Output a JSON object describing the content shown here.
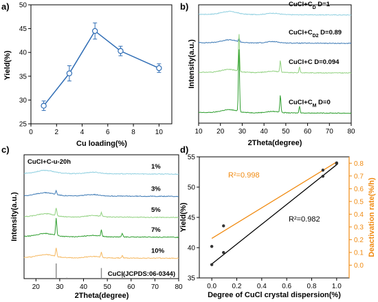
{
  "panel_labels": {
    "a": "a)",
    "b": "b)",
    "c": "c)",
    "d": "d)"
  },
  "colors": {
    "blue": "#2f6db5",
    "orange": "#f08a10",
    "black": "#000000",
    "c1": "#8ecfe0",
    "c2": "#3a78b4",
    "c3": "#8fd07e",
    "c4": "#2f9e2f",
    "c5": "#f5b860",
    "ref": "#888888"
  },
  "chart_data": [
    {
      "type": "line",
      "panel": "a",
      "xlabel": "Cu loading(%)",
      "ylabel": "Yield(%)",
      "xlim": [
        0,
        11
      ],
      "ylim": [
        25,
        50
      ],
      "xticks": [
        "0",
        "2",
        "4",
        "6",
        "8",
        "10"
      ],
      "yticks": [
        "25",
        "30",
        "35",
        "40",
        "45",
        "50"
      ],
      "x": [
        1,
        3,
        5,
        7,
        10
      ],
      "y": [
        28.8,
        35.6,
        44.5,
        40.3,
        36.7
      ],
      "yerr": [
        1.0,
        1.6,
        1.7,
        1.0,
        0.9
      ]
    },
    {
      "type": "line",
      "panel": "b",
      "xlabel": "2Theta(degree)",
      "ylabel": "Intensity(a.u.)",
      "xlim": [
        10,
        80
      ],
      "xticks": [
        "10",
        "20",
        "30",
        "40",
        "50",
        "60",
        "70",
        "80"
      ],
      "series": [
        {
          "label_main": "CuCl+C",
          "label_sub": "D",
          "label_d": "D=1",
          "color": "#8ecfe0",
          "baseline": 0.92,
          "peaks": []
        },
        {
          "label_main": "CuCl+C",
          "label_sub": "D2",
          "label_d": "D=0.89",
          "color": "#3a78b4",
          "baseline": 0.68,
          "peaks": [
            [
              28.5,
              0.03
            ]
          ]
        },
        {
          "label_main": "CuCl+C",
          "label_sub": "",
          "label_d": "D=0.094",
          "color": "#8fd07e",
          "baseline": 0.43,
          "peaks": [
            [
              28.5,
              0.33
            ],
            [
              47.5,
              0.1
            ],
            [
              56.3,
              0.05
            ]
          ]
        },
        {
          "label_main": "CuCl+C",
          "label_sub": "M",
          "label_d": "D=0",
          "color": "#2f9e2f",
          "baseline": 0.09,
          "peaks": [
            [
              28.5,
              0.55
            ],
            [
              47.5,
              0.15
            ],
            [
              56.3,
              0.06
            ]
          ]
        }
      ]
    },
    {
      "type": "line",
      "panel": "c",
      "title": "CuCl+C-u-20h",
      "xlabel": "2Theta(degree)",
      "ylabel": "Intensity(a.u.)",
      "xlim": [
        15,
        80
      ],
      "xticks": [
        "20",
        "30",
        "40",
        "50",
        "60",
        "70",
        "80"
      ],
      "series": [
        {
          "label": "1%",
          "color": "#8ecfe0",
          "baseline": 0.85,
          "peaks": []
        },
        {
          "label": "3%",
          "color": "#3a78b4",
          "baseline": 0.67,
          "peaks": [
            [
              28.5,
              0.03
            ]
          ]
        },
        {
          "label": "5%",
          "color": "#8fd07e",
          "baseline": 0.5,
          "peaks": [
            [
              28.5,
              0.06
            ],
            [
              47.5,
              0.03
            ]
          ]
        },
        {
          "label": "7%",
          "color": "#2f9e2f",
          "baseline": 0.34,
          "peaks": [
            [
              28.5,
              0.14
            ],
            [
              47.5,
              0.05
            ],
            [
              56.3,
              0.03
            ]
          ]
        },
        {
          "label": "10%",
          "color": "#f5b860",
          "baseline": 0.17,
          "peaks": [
            [
              28.5,
              0.07
            ],
            [
              47.5,
              0.04
            ],
            [
              56.3,
              0.02
            ]
          ]
        }
      ],
      "reference": {
        "label": "CuCl(JCPDS:06-0344)",
        "lines": [
          [
            28.5,
            1.0
          ],
          [
            33.0,
            0.06
          ],
          [
            47.5,
            0.7
          ],
          [
            56.3,
            0.35
          ],
          [
            69.3,
            0.08
          ],
          [
            76.6,
            0.12
          ]
        ]
      }
    },
    {
      "type": "scatter",
      "panel": "d",
      "xlabel": "Degree of CuCl crystal dispersion(%)",
      "ylabel": "Yield(%)",
      "y2label": "Deactivation rate(%/h)",
      "xlim": [
        -0.1,
        1.1
      ],
      "ylim": [
        35,
        55
      ],
      "y2lim": [
        -0.1,
        0.85
      ],
      "xticks": [
        "0.0",
        "0.2",
        "0.4",
        "0.6",
        "0.8",
        "1.0"
      ],
      "yticks": [
        "35",
        "40",
        "45",
        "50",
        "55"
      ],
      "y2ticks": [
        "0.0",
        "0.1",
        "0.2",
        "0.3",
        "0.4",
        "0.5",
        "0.6",
        "0.7",
        "0.8"
      ],
      "points": [
        [
          0.0,
          40.2
        ],
        [
          0.0,
          37.2
        ],
        [
          0.094,
          43.6
        ],
        [
          0.094,
          39.2
        ],
        [
          0.89,
          52.8
        ],
        [
          0.89,
          51.8
        ],
        [
          1.0,
          54.0
        ],
        [
          1.0,
          53.9
        ]
      ],
      "fit_black": {
        "x": [
          0,
          1
        ],
        "y": [
          37.3,
          53.7
        ],
        "r2": "R²=0.982"
      },
      "fit_orange": {
        "x": [
          0,
          1
        ],
        "y2": [
          0.21,
          0.81
        ],
        "r2": "R²=0.998"
      }
    }
  ]
}
